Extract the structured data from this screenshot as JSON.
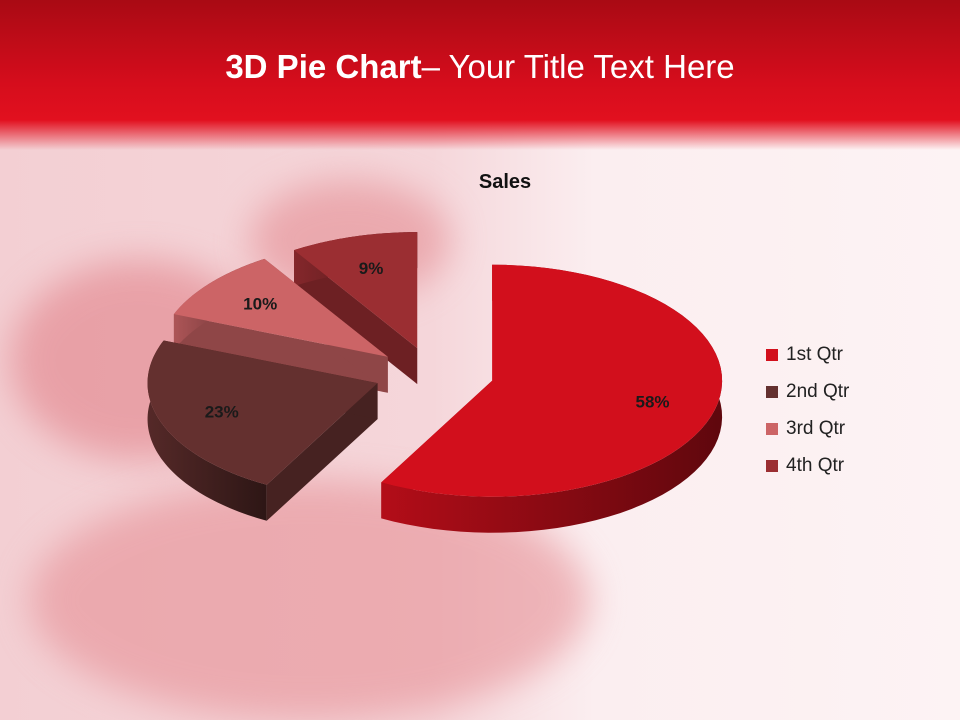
{
  "slide": {
    "title_bold": "3D Pie Chart",
    "title_rest": "– Your Title Text Here"
  },
  "chart_data": {
    "type": "pie",
    "title": "Sales",
    "three_d": true,
    "exploded": true,
    "categories": [
      "1st Qtr",
      "2nd Qtr",
      "3rd Qtr",
      "4th Qtr"
    ],
    "values": [
      58,
      23,
      10,
      9
    ],
    "labels": [
      "58%",
      "23%",
      "10%",
      "9%"
    ],
    "colors": [
      "#d20f1c",
      "#64302f",
      "#cc6466",
      "#9b2e32"
    ],
    "legend_position": "right"
  }
}
